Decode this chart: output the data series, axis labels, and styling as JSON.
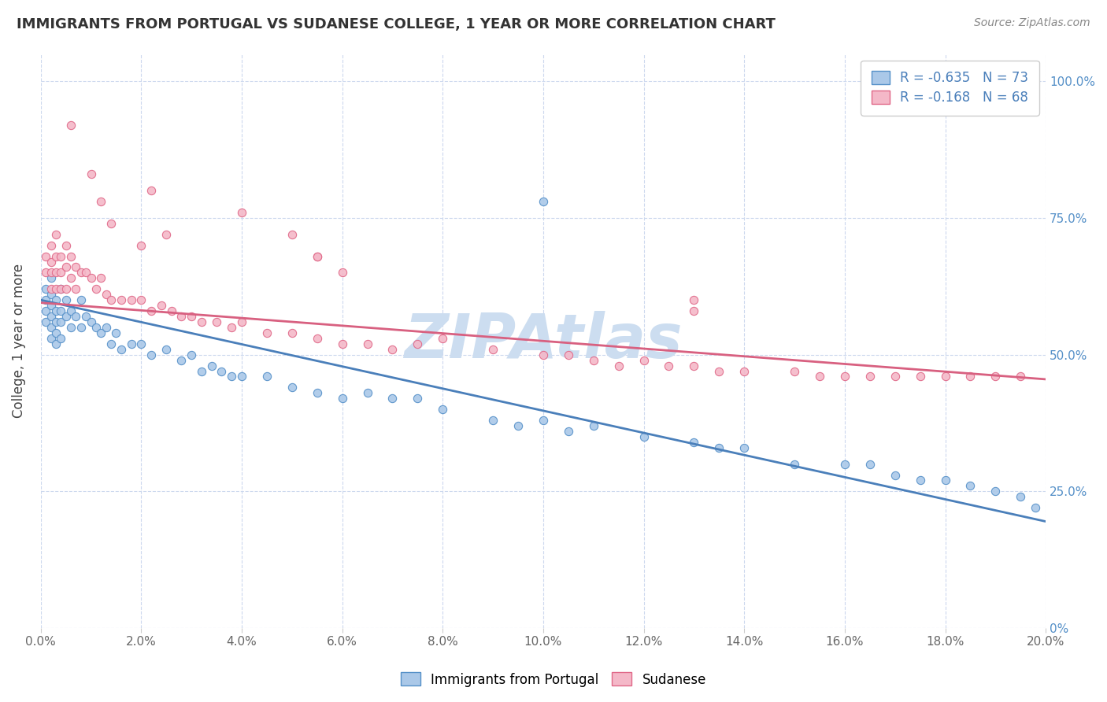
{
  "title": "IMMIGRANTS FROM PORTUGAL VS SUDANESE COLLEGE, 1 YEAR OR MORE CORRELATION CHART",
  "source_text": "Source: ZipAtlas.com",
  "ylabel": "College, 1 year or more",
  "xlim": [
    0.0,
    0.2
  ],
  "ylim": [
    0.0,
    1.05
  ],
  "xtick_labels": [
    "0.0%",
    "2.0%",
    "4.0%",
    "6.0%",
    "8.0%",
    "10.0%",
    "12.0%",
    "14.0%",
    "16.0%",
    "18.0%",
    "20.0%"
  ],
  "xtick_values": [
    0.0,
    0.02,
    0.04,
    0.06,
    0.08,
    0.1,
    0.12,
    0.14,
    0.16,
    0.18,
    0.2
  ],
  "ytick_values": [
    0.0,
    0.25,
    0.5,
    0.75,
    1.0
  ],
  "right_ytick_labels": [
    "0%",
    "25.0%",
    "50.0%",
    "75.0%",
    "100.0%"
  ],
  "blue_r": "-0.635",
  "blue_n": "73",
  "pink_r": "-0.168",
  "pink_n": "68",
  "blue_color": "#aac8e8",
  "pink_color": "#f4b8c8",
  "blue_edge_color": "#5590c8",
  "pink_edge_color": "#e06888",
  "blue_line_color": "#4a7fba",
  "pink_line_color": "#d86080",
  "watermark": "ZIPAtlas",
  "watermark_color": "#ccddf0",
  "legend_label_blue": "Immigrants from Portugal",
  "legend_label_pink": "Sudanese",
  "blue_trend_x0": 0.0,
  "blue_trend_y0": 0.6,
  "blue_trend_x1": 0.2,
  "blue_trend_y1": 0.195,
  "pink_trend_x0": 0.0,
  "pink_trend_y0": 0.595,
  "pink_trend_x1": 0.2,
  "pink_trend_y1": 0.455,
  "blue_x": [
    0.001,
    0.001,
    0.001,
    0.001,
    0.002,
    0.002,
    0.002,
    0.002,
    0.002,
    0.002,
    0.003,
    0.003,
    0.003,
    0.003,
    0.003,
    0.004,
    0.004,
    0.004,
    0.004,
    0.005,
    0.005,
    0.006,
    0.006,
    0.007,
    0.008,
    0.008,
    0.009,
    0.01,
    0.011,
    0.012,
    0.013,
    0.014,
    0.015,
    0.016,
    0.018,
    0.02,
    0.022,
    0.025,
    0.028,
    0.03,
    0.032,
    0.034,
    0.036,
    0.038,
    0.04,
    0.045,
    0.05,
    0.055,
    0.06,
    0.065,
    0.07,
    0.075,
    0.08,
    0.09,
    0.095,
    0.1,
    0.105,
    0.11,
    0.12,
    0.13,
    0.135,
    0.14,
    0.15,
    0.16,
    0.165,
    0.17,
    0.175,
    0.18,
    0.185,
    0.19,
    0.195,
    0.198,
    0.1
  ],
  "blue_y": [
    0.62,
    0.6,
    0.58,
    0.56,
    0.64,
    0.61,
    0.59,
    0.57,
    0.55,
    0.53,
    0.6,
    0.58,
    0.56,
    0.54,
    0.52,
    0.62,
    0.58,
    0.56,
    0.53,
    0.6,
    0.57,
    0.58,
    0.55,
    0.57,
    0.6,
    0.55,
    0.57,
    0.56,
    0.55,
    0.54,
    0.55,
    0.52,
    0.54,
    0.51,
    0.52,
    0.52,
    0.5,
    0.51,
    0.49,
    0.5,
    0.47,
    0.48,
    0.47,
    0.46,
    0.46,
    0.46,
    0.44,
    0.43,
    0.42,
    0.43,
    0.42,
    0.42,
    0.4,
    0.38,
    0.37,
    0.38,
    0.36,
    0.37,
    0.35,
    0.34,
    0.33,
    0.33,
    0.3,
    0.3,
    0.3,
    0.28,
    0.27,
    0.27,
    0.26,
    0.25,
    0.24,
    0.22,
    0.78
  ],
  "pink_x": [
    0.001,
    0.001,
    0.002,
    0.002,
    0.002,
    0.002,
    0.003,
    0.003,
    0.003,
    0.003,
    0.004,
    0.004,
    0.004,
    0.005,
    0.005,
    0.005,
    0.006,
    0.006,
    0.007,
    0.007,
    0.008,
    0.009,
    0.01,
    0.011,
    0.012,
    0.013,
    0.014,
    0.016,
    0.018,
    0.02,
    0.022,
    0.024,
    0.026,
    0.028,
    0.03,
    0.032,
    0.035,
    0.038,
    0.04,
    0.045,
    0.05,
    0.055,
    0.06,
    0.065,
    0.07,
    0.075,
    0.08,
    0.09,
    0.1,
    0.105,
    0.11,
    0.115,
    0.12,
    0.125,
    0.13,
    0.135,
    0.14,
    0.15,
    0.155,
    0.16,
    0.165,
    0.17,
    0.175,
    0.18,
    0.185,
    0.19,
    0.195,
    0.025
  ],
  "pink_y": [
    0.68,
    0.65,
    0.7,
    0.67,
    0.65,
    0.62,
    0.72,
    0.68,
    0.65,
    0.62,
    0.68,
    0.65,
    0.62,
    0.7,
    0.66,
    0.62,
    0.68,
    0.64,
    0.66,
    0.62,
    0.65,
    0.65,
    0.64,
    0.62,
    0.64,
    0.61,
    0.6,
    0.6,
    0.6,
    0.6,
    0.58,
    0.59,
    0.58,
    0.57,
    0.57,
    0.56,
    0.56,
    0.55,
    0.56,
    0.54,
    0.54,
    0.53,
    0.52,
    0.52,
    0.51,
    0.52,
    0.53,
    0.51,
    0.5,
    0.5,
    0.49,
    0.48,
    0.49,
    0.48,
    0.48,
    0.47,
    0.47,
    0.47,
    0.46,
    0.46,
    0.46,
    0.46,
    0.46,
    0.46,
    0.46,
    0.46,
    0.46,
    0.72
  ],
  "pink_outlier_x": [
    0.022,
    0.04,
    0.05,
    0.055,
    0.06,
    0.13,
    0.13
  ],
  "pink_outlier_y": [
    0.8,
    0.76,
    0.72,
    0.68,
    0.65,
    0.6,
    0.58
  ],
  "pink_high_x": [
    0.006,
    0.01,
    0.012,
    0.014,
    0.02,
    0.055
  ],
  "pink_high_y": [
    0.92,
    0.83,
    0.78,
    0.74,
    0.7,
    0.68
  ],
  "figsize": [
    14.06,
    8.92
  ],
  "dpi": 100
}
